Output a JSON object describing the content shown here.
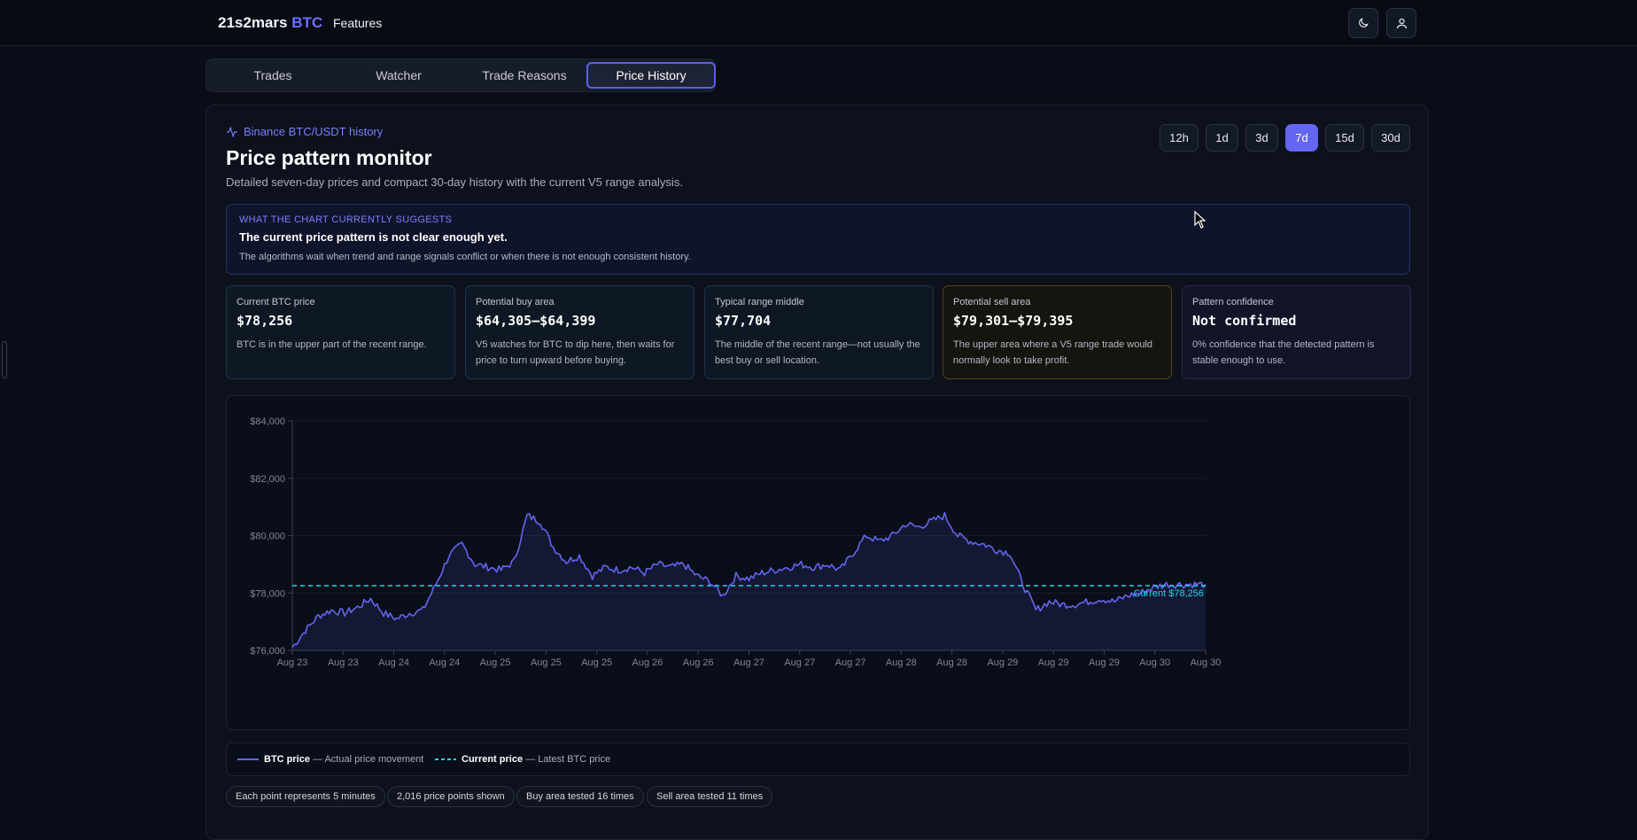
{
  "app": {
    "brand_name": "21s2mars",
    "brand_accent": "BTC",
    "nav_features": "Features",
    "theme_icon": "moon-icon",
    "user_icon": "user-icon"
  },
  "tabs": [
    {
      "label": "Trades"
    },
    {
      "label": "Watcher"
    },
    {
      "label": "Trade Reasons"
    },
    {
      "label": "Price History",
      "active": true
    }
  ],
  "header": {
    "subhead": "Binance BTC/USDT history",
    "subhead_icon": "activity-icon",
    "title": "Price pattern monitor",
    "description": "Detailed seven-day prices and compact 30-day history with the current V5 range analysis."
  },
  "ranges": {
    "options": [
      "12h",
      "1d",
      "3d",
      "7d",
      "15d",
      "30d"
    ],
    "selected": "7d"
  },
  "suggestion": {
    "label": "WHAT THE CHART CURRENTLY SUGGESTS",
    "headline": "The current price pattern is not clear enough yet.",
    "detail": "The algorithms wait when trend and range signals conflict or when there is not enough consistent history."
  },
  "stats": [
    {
      "label": "Current BTC price",
      "value": "$78,256",
      "desc": "BTC is in the upper part of the recent range."
    },
    {
      "label": "Potential buy area",
      "value": "$64,305–$64,399",
      "desc": "V5 watches for BTC to dip here, then waits for price to turn upward before buying."
    },
    {
      "label": "Typical range middle",
      "value": "$77,704",
      "desc": "The middle of the recent range—not usually the best buy or sell location."
    },
    {
      "label": "Potential sell area",
      "value": "$79,301–$79,395",
      "desc": "The upper area where a V5 range trade would normally look to take profit."
    },
    {
      "label": "Pattern confidence",
      "value": "Not confirmed",
      "desc": "0% confidence that the detected pattern is stable enough to use."
    }
  ],
  "chart_data": {
    "type": "area",
    "y_ticks": [
      "$84,000",
      "$82,000",
      "$80,000",
      "$78,000",
      "$76,000"
    ],
    "ylim": [
      76000,
      84000
    ],
    "x_ticks": [
      "Aug 23",
      "Aug 23",
      "Aug 24",
      "Aug 24",
      "Aug 25",
      "Aug 25",
      "Aug 25",
      "Aug 26",
      "Aug 26",
      "Aug 27",
      "Aug 27",
      "Aug 27",
      "Aug 28",
      "Aug 28",
      "Aug 29",
      "Aug 29",
      "Aug 29",
      "Aug 30",
      "Aug 30"
    ],
    "series": [
      {
        "name": "BTC price",
        "color": "#6366f1",
        "values": [
          76100,
          76700,
          77200,
          77400,
          77300,
          77500,
          77800,
          77300,
          77100,
          77300,
          77400,
          78300,
          79300,
          79700,
          79000,
          78900,
          78800,
          79100,
          80700,
          80500,
          79600,
          79100,
          79300,
          78600,
          78900,
          78800,
          78900,
          78700,
          79000,
          78900,
          79000,
          78600,
          78400,
          77900,
          78600,
          78500,
          78700,
          78800,
          78900,
          79000,
          78900,
          79000,
          78800,
          79400,
          80000,
          79800,
          80000,
          80400,
          80300,
          80500,
          80700,
          80000,
          79800,
          79700,
          79500,
          79400,
          78300,
          77400,
          77700,
          77600,
          77600,
          77700,
          77800,
          77700,
          77900,
          78000,
          78200,
          78300,
          78300,
          78300,
          78300
        ]
      }
    ],
    "current_price": {
      "label": "Current $78,256",
      "value": 78256,
      "color": "#22d3ee"
    }
  },
  "legend": {
    "series_label": "BTC price",
    "series_desc": " — Actual price movement",
    "current_label": "Current price",
    "current_desc": " — Latest BTC price"
  },
  "pills": [
    "Each point represents 5 minutes",
    "2,016 price points shown",
    "Buy area tested 16 times",
    "Sell area tested 11 times"
  ]
}
